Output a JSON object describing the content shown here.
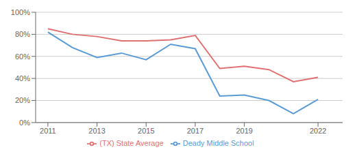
{
  "chart_data": {
    "type": "line",
    "x": [
      2011,
      2012,
      2013,
      2014,
      2015,
      2016,
      2017,
      2018,
      2019,
      2020,
      2021,
      2022
    ],
    "series": [
      {
        "name": "Deady Middle School",
        "color": "#5b9bd5",
        "values": [
          0.82,
          0.68,
          0.59,
          0.63,
          0.57,
          0.71,
          0.67,
          0.24,
          0.25,
          0.2,
          0.08,
          0.21
        ]
      },
      {
        "name": "(TX) State Average",
        "color": "#e07070",
        "values": [
          0.85,
          0.8,
          0.78,
          0.74,
          0.74,
          0.75,
          0.79,
          0.49,
          0.51,
          0.48,
          0.37,
          0.41
        ]
      }
    ],
    "xlim": [
      2010.5,
      2023.0
    ],
    "xticks": [
      2011,
      2013,
      2015,
      2017,
      2019,
      2022
    ],
    "ylim": [
      0,
      1.0
    ],
    "yticks": [
      {
        "value": 0,
        "label": "0%"
      },
      {
        "value": 0.2,
        "label": "20%"
      },
      {
        "value": 0.4,
        "label": "40%"
      },
      {
        "value": 0.6,
        "label": "60%"
      },
      {
        "value": 0.8,
        "label": "80%"
      },
      {
        "value": 1.0,
        "label": "100%"
      }
    ],
    "grid": true,
    "legend": "bottom"
  }
}
